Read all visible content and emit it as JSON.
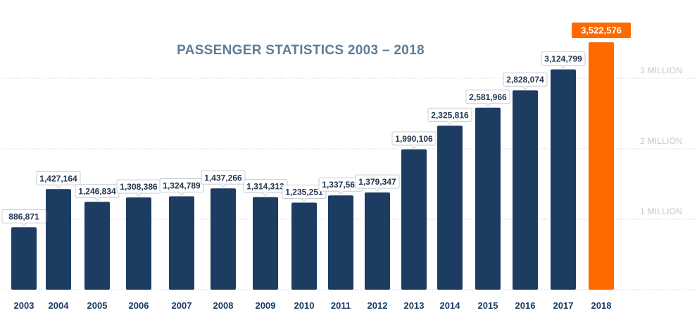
{
  "colors": {
    "bar": "#1c3c62",
    "highlight": "#ff6a00",
    "title": "#5d7c97",
    "tick": "#1c3c62",
    "grid_label": "#c3c7cd"
  },
  "chart_data": {
    "type": "bar",
    "title": "PASSENGER STATISTICS 2003 – 2018",
    "xlabel": "",
    "ylabel": "",
    "categories": [
      "2003",
      "2004",
      "2005",
      "2006",
      "2007",
      "2008",
      "2009",
      "2010",
      "2011",
      "2012",
      "2013",
      "2014",
      "2015",
      "2016",
      "2017",
      "2018"
    ],
    "values": [
      886871,
      1427164,
      1246834,
      1308386,
      1324789,
      1437266,
      1314313,
      1235251,
      1337562,
      1379347,
      1990106,
      2325816,
      2581966,
      2828074,
      3124799,
      3522576
    ],
    "value_labels": [
      "886,871",
      "1,427,164",
      "1,246,834",
      "1,308,386",
      "1,324,789",
      "1,437,266",
      "1,314,313",
      "1,235,251",
      "1,337,562",
      "1,379,347",
      "1,990,106",
      "2,325,816",
      "2,581,966",
      "2,828,074",
      "3,124,799",
      "3,522,576"
    ],
    "highlight_index": 15,
    "ylim": [
      0,
      3522576
    ],
    "gridlines": [
      {
        "value": 1000000,
        "label": "1 MILLION"
      },
      {
        "value": 2000000,
        "label": "2 MILLION"
      },
      {
        "value": 3000000,
        "label": "3 MILLION"
      }
    ],
    "grid": true,
    "legend": "none"
  }
}
